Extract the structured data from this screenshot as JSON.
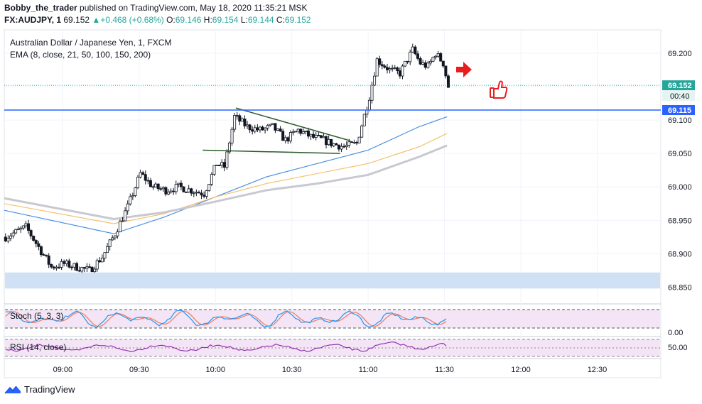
{
  "header": {
    "user": "Bobby_the_trader",
    "published": "published on TradingView.com, May 18, 2020 11:35:21 MSK",
    "symbol": "FX:AUDJPY, 1",
    "last": "69.152",
    "change": "+0.468 (+0.68%)",
    "o_label": "O:",
    "o": "69.146",
    "h_label": "H:",
    "h": "69.154",
    "l_label": "L:",
    "l": "69.144",
    "c_label": "C:",
    "c": "69.152"
  },
  "legend": {
    "title": "Australian Dollar / Japanese Yen, 1, FXCM",
    "ema": "EMA (8, close, 21, 50, 100, 150, 200)",
    "stoch": "Stoch (5, 3, 3)",
    "rsi": "RSI (14, close)"
  },
  "tags": {
    "price": "69.152",
    "countdown": "00:40",
    "level": "69.115"
  },
  "footer": {
    "brand": "TradingView"
  },
  "colors": {
    "up": "#26a69a",
    "level": "#2962ff",
    "ema_blue": "#4a90e2",
    "ema_orange": "#f5c16c",
    "ema_grey": "#c8c8d0",
    "trend": "#2e5a2e",
    "arrow": "#e81e1e",
    "stoch_bg": "#f3e5f5",
    "zone": "#d0e0f5"
  },
  "chart_data": {
    "type": "candlestick",
    "title": "Australian Dollar / Japanese Yen, 1, FXCM",
    "ylim": [
      68.825,
      69.235
    ],
    "y_ticks": [
      "69.200",
      "69.150",
      "69.100",
      "69.050",
      "69.000",
      "68.950",
      "68.900",
      "68.850"
    ],
    "y_tick_values": [
      69.2,
      69.15,
      69.1,
      69.05,
      69.0,
      68.95,
      68.9,
      68.85
    ],
    "x_ticks": [
      "09:00",
      "09:30",
      "10:00",
      "10:30",
      "11:00",
      "11:30",
      "12:00",
      "12:30"
    ],
    "x_tick_minutes": [
      540,
      570,
      600,
      630,
      660,
      690,
      720,
      750
    ],
    "x_start_minute": 517,
    "x_end_minute": 775,
    "last_price": 69.152,
    "level": 69.115,
    "zone": [
      68.848,
      68.872
    ],
    "path": [
      [
        517,
        68.925
      ],
      [
        525,
        68.94
      ],
      [
        530,
        68.91
      ],
      [
        535,
        68.88
      ],
      [
        540,
        68.885
      ],
      [
        545,
        68.88
      ],
      [
        550,
        68.875
      ],
      [
        555,
        68.895
      ],
      [
        560,
        68.93
      ],
      [
        565,
        68.97
      ],
      [
        570,
        69.02
      ],
      [
        575,
        69.0
      ],
      [
        580,
        68.995
      ],
      [
        585,
        69.0
      ],
      [
        590,
        68.995
      ],
      [
        595,
        68.99
      ],
      [
        600,
        69.035
      ],
      [
        603,
        69.03
      ],
      [
        607,
        69.105
      ],
      [
        612,
        69.09
      ],
      [
        617,
        69.085
      ],
      [
        622,
        69.09
      ],
      [
        627,
        69.07
      ],
      [
        632,
        69.085
      ],
      [
        637,
        69.075
      ],
      [
        642,
        69.07
      ],
      [
        645,
        69.065
      ],
      [
        650,
        69.06
      ],
      [
        655,
        69.065
      ],
      [
        660,
        69.135
      ],
      [
        663,
        69.19
      ],
      [
        668,
        69.175
      ],
      [
        672,
        69.17
      ],
      [
        677,
        69.205
      ],
      [
        680,
        69.185
      ],
      [
        683,
        69.18
      ],
      [
        686,
        69.2
      ],
      [
        689,
        69.185
      ],
      [
        691,
        69.15
      ]
    ],
    "ema": [
      {
        "color": "#4a90e2",
        "points": [
          [
            517,
            68.965
          ],
          [
            560,
            68.93
          ],
          [
            580,
            68.955
          ],
          [
            600,
            68.985
          ],
          [
            620,
            69.015
          ],
          [
            640,
            69.035
          ],
          [
            660,
            69.055
          ],
          [
            680,
            69.09
          ],
          [
            691,
            69.105
          ]
        ]
      },
      {
        "color": "#f5c16c",
        "points": [
          [
            517,
            68.975
          ],
          [
            560,
            68.945
          ],
          [
            580,
            68.96
          ],
          [
            600,
            68.985
          ],
          [
            620,
            69.005
          ],
          [
            640,
            69.02
          ],
          [
            660,
            69.035
          ],
          [
            680,
            69.06
          ],
          [
            691,
            69.08
          ]
        ]
      },
      {
        "color": "#c8c8d0",
        "points": [
          [
            517,
            68.983
          ],
          [
            560,
            68.952
          ],
          [
            580,
            68.962
          ],
          [
            600,
            68.978
          ],
          [
            620,
            68.995
          ],
          [
            640,
            69.005
          ],
          [
            660,
            69.018
          ],
          [
            680,
            69.045
          ],
          [
            691,
            69.062
          ]
        ]
      }
    ],
    "trendlines": [
      {
        "points": [
          [
            608,
            69.118
          ],
          [
            653,
            69.069
          ]
        ]
      },
      {
        "points": [
          [
            595,
            69.055
          ],
          [
            649,
            69.05
          ]
        ]
      }
    ],
    "stoch_bands": [
      80,
      20
    ],
    "rsi_bands": [
      70,
      50,
      30
    ],
    "stoch_tick": "0.00",
    "rsi_tick": "50.00"
  }
}
